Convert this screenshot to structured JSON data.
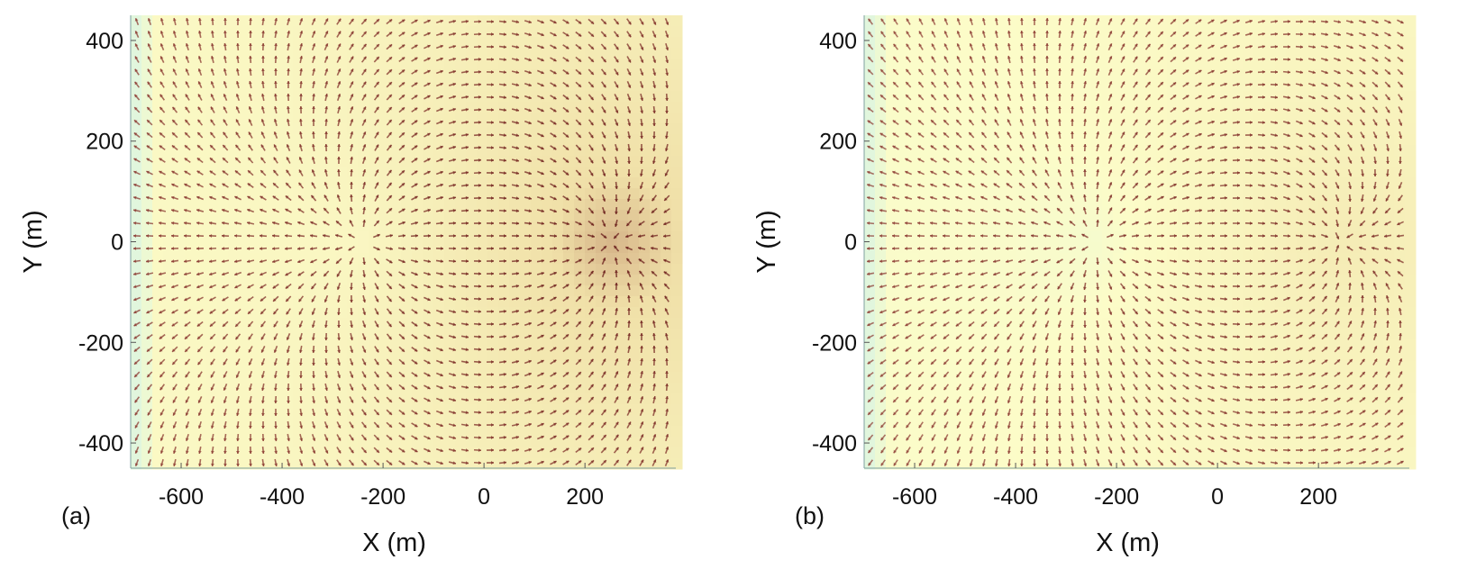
{
  "chart_data": [
    {
      "type": "quiver",
      "panel_label": "(a)",
      "xlabel": "X (m)",
      "ylabel": "Y (m)",
      "xlim": [
        -700,
        380
      ],
      "ylim": [
        -450,
        450
      ],
      "xticks": [
        -600,
        -400,
        -200,
        0,
        200
      ],
      "yticks": [
        -400,
        -200,
        0,
        200,
        400
      ],
      "grid": false,
      "field": {
        "description": "vector field with radial divergence near x=-240, y=0 and convergence near x=250, y=0",
        "source": {
          "x": -240,
          "y": 0
        },
        "sink": {
          "x": 250,
          "y": 0
        },
        "sink_strength": 1.0,
        "colormap": [
          "#c8f0f0",
          "#fcfcc8",
          "#f0e0a8",
          "#8c3a32",
          "#5a1010"
        ]
      }
    },
    {
      "type": "quiver",
      "panel_label": "(b)",
      "xlabel": "X (m)",
      "ylabel": "Y (m)",
      "xlim": [
        -700,
        380
      ],
      "ylim": [
        -450,
        450
      ],
      "xticks": [
        -600,
        -400,
        -200,
        0,
        200
      ],
      "yticks": [
        -400,
        -200,
        0,
        200,
        400
      ],
      "grid": false,
      "field": {
        "description": "vector field with radial divergence near x=-240, y=0 and a weaker convergence near x=240, y=0",
        "source": {
          "x": -240,
          "y": 0
        },
        "sink": {
          "x": 240,
          "y": 0
        },
        "sink_strength": 0.55,
        "colormap": [
          "#c8f0f0",
          "#fcfcc8",
          "#f0e0a8",
          "#8c3a32",
          "#5a1010"
        ]
      }
    }
  ]
}
